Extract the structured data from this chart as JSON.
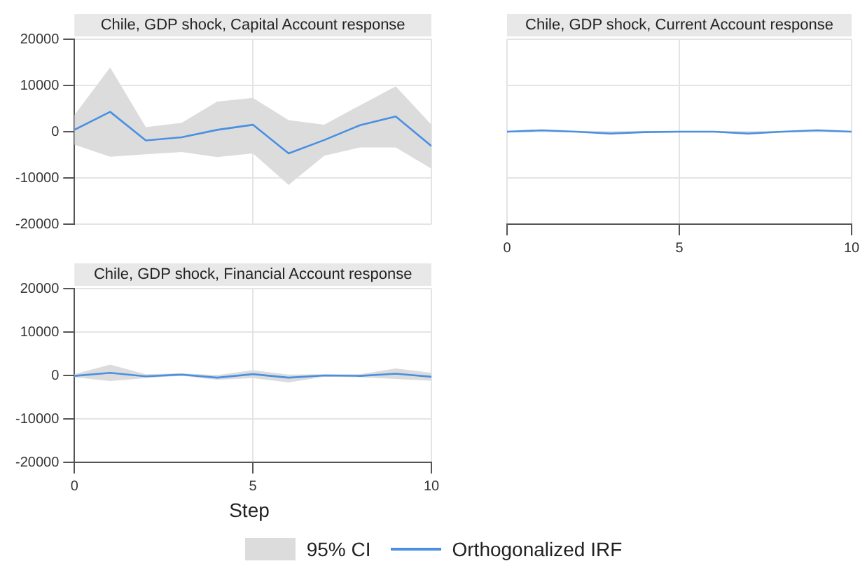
{
  "chart_data": [
    {
      "type": "line",
      "title": "Chile, GDP shock, Capital Account response",
      "x": [
        0,
        1,
        2,
        3,
        4,
        5,
        6,
        7,
        8,
        9,
        10
      ],
      "xlim": [
        0,
        10
      ],
      "xticks": [
        0,
        5,
        10
      ],
      "ylim": [
        -20000,
        20000
      ],
      "yticks": [
        -20000,
        -10000,
        0,
        10000,
        20000
      ],
      "grid": true,
      "tick_labels": "y",
      "series": [
        {
          "color": "#4a90e2",
          "values": [
            400,
            4300,
            -1900,
            -1200,
            400,
            1500,
            -4700,
            -1800,
            1400,
            3300,
            -3100
          ],
          "lower": [
            -2800,
            -5400,
            -4900,
            -4400,
            -5500,
            -4700,
            -11500,
            -5200,
            -3400,
            -3400,
            -8000
          ],
          "upper": [
            3600,
            13900,
            1000,
            1900,
            6500,
            7300,
            2500,
            1500,
            5700,
            9800,
            1500
          ]
        }
      ]
    },
    {
      "type": "line",
      "title": "Chile, GDP shock, Current Account response",
      "x": [
        0,
        1,
        2,
        3,
        4,
        5,
        6,
        7,
        8,
        9,
        10
      ],
      "xlim": [
        0,
        10
      ],
      "xticks": [
        0,
        5,
        10
      ],
      "ylim": [
        -20000,
        20000
      ],
      "yticks": [
        -20000,
        -10000,
        0,
        10000,
        20000
      ],
      "grid": true,
      "tick_labels": "x",
      "series": [
        {
          "color": "#4a90e2",
          "values": [
            0,
            300,
            0,
            -400,
            -100,
            0,
            0,
            -400,
            0,
            300,
            0
          ]
        }
      ]
    },
    {
      "type": "line",
      "title": "Chile, GDP shock, Financial Account response",
      "xlabel": "Step",
      "x": [
        0,
        1,
        2,
        3,
        4,
        5,
        6,
        7,
        8,
        9,
        10
      ],
      "xlim": [
        0,
        10
      ],
      "xticks": [
        0,
        5,
        10
      ],
      "ylim": [
        -20000,
        20000
      ],
      "yticks": [
        -20000,
        -10000,
        0,
        10000,
        20000
      ],
      "grid": true,
      "legend": "bottom",
      "annotations": [
        "95% CI"
      ],
      "series": [
        {
          "name": "Orthogonalized IRF",
          "color": "#4a90e2",
          "values": [
            -100,
            600,
            -200,
            200,
            -500,
            300,
            -500,
            0,
            -100,
            400,
            -300
          ],
          "lower": [
            -400,
            -1300,
            -600,
            -100,
            -1000,
            -600,
            -1600,
            -300,
            -400,
            -800,
            -1200
          ],
          "upper": [
            300,
            2500,
            300,
            500,
            100,
            1200,
            200,
            300,
            300,
            1600,
            600
          ]
        }
      ]
    }
  ]
}
